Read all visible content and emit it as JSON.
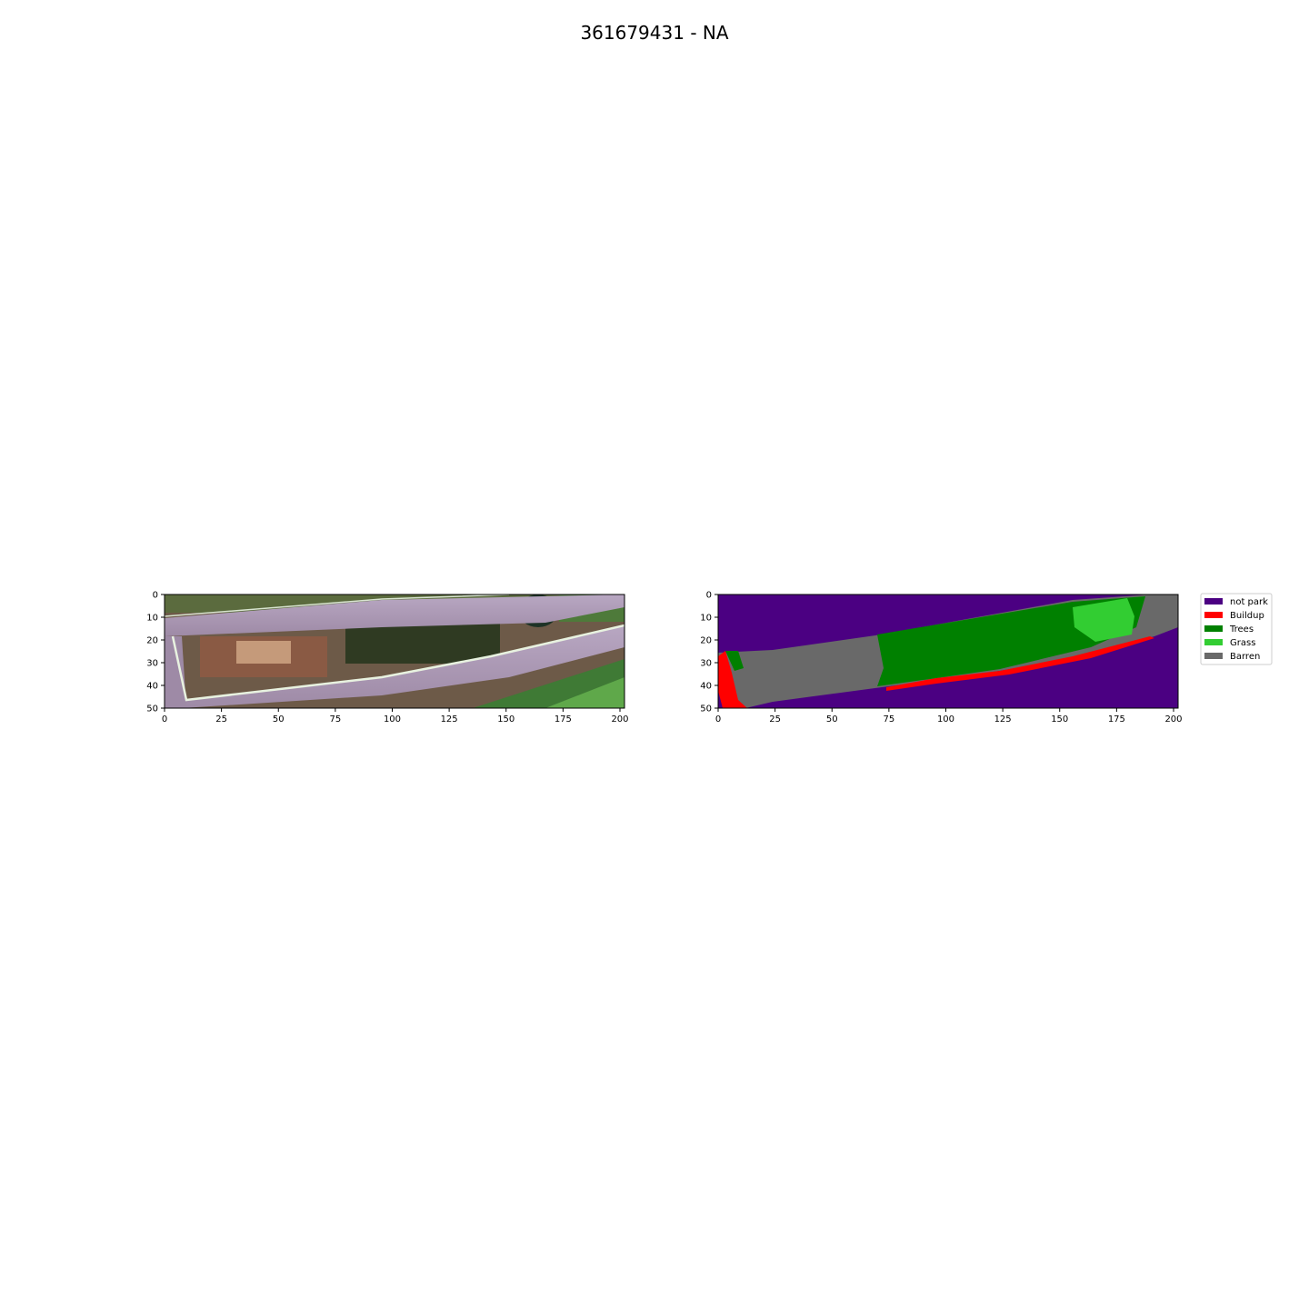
{
  "chart_data": {
    "title": "361679431 - NA",
    "panels": [
      {
        "type": "heatmap",
        "kind": "rgb-image",
        "xlim": [
          0,
          202
        ],
        "ylim": [
          50,
          0
        ],
        "xticks": [
          0,
          25,
          50,
          75,
          100,
          125,
          150,
          175,
          200
        ],
        "yticks": [
          0,
          10,
          20,
          30,
          40,
          50
        ]
      },
      {
        "type": "heatmap",
        "kind": "class-map",
        "xlim": [
          0,
          202
        ],
        "ylim": [
          50,
          0
        ],
        "xticks": [
          0,
          25,
          50,
          75,
          100,
          125,
          150,
          175,
          200
        ],
        "yticks": [
          0,
          10,
          20,
          30,
          40,
          50
        ],
        "legend_position": "upper-right-outside",
        "classes": [
          {
            "name": "not park",
            "color": "#4b0082"
          },
          {
            "name": "Buildup",
            "color": "#ff0000"
          },
          {
            "name": "Trees",
            "color": "#008000"
          },
          {
            "name": "Grass",
            "color": "#32cd32"
          },
          {
            "name": "Barren",
            "color": "#696969"
          }
        ]
      }
    ]
  }
}
